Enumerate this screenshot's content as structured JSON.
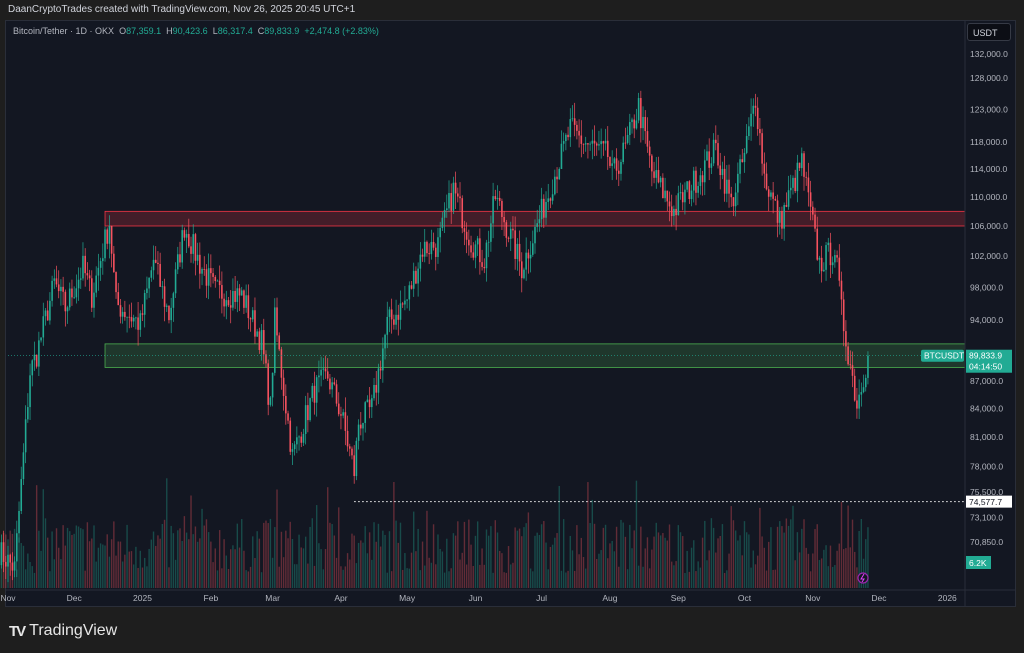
{
  "header": {
    "credit": "DaanCryptoTrades created with TradingView.com, Nov 26, 2025 20:45 UTC+1"
  },
  "legend": {
    "symbol": "Bitcoin/Tether · 1D · OKX",
    "o_label": "O",
    "o": "87,359.1",
    "h_label": "H",
    "h": "90,423.6",
    "l_label": "L",
    "l": "86,317.4",
    "c_label": "C",
    "c": "89,833.9",
    "change": "+2,474.8 (+2.83%)"
  },
  "price_axis": {
    "currency_button": "USDT"
  },
  "logo": {
    "text": "TradingView"
  },
  "colors": {
    "up": "#22ab94",
    "down": "#f7525f",
    "background": "#131722",
    "resistance_zone": "#f23645",
    "support_zone": "#4caf50",
    "marker": "#9c27b0"
  },
  "chart_data": {
    "type": "candlestick",
    "symbol": "BTCUSDT",
    "interval": "1D",
    "y_scale": "log",
    "ylim": [
      67000,
      134000
    ],
    "grid": false,
    "y_ticks": [
      132000,
      128000,
      123000,
      118000,
      114000,
      110000,
      106000,
      102000,
      98000,
      94000,
      87000,
      84000,
      81000,
      78000,
      75500,
      73100,
      70850
    ],
    "y_tick_labels": [
      "132,000.0",
      "128,000.0",
      "123,000.0",
      "118,000.0",
      "114,000.0",
      "110,000.0",
      "106,000.0",
      "102,000.0",
      "98,000.0",
      "94,000.0",
      "87,000.0",
      "84,000.0",
      "81,000.0",
      "78,000.0",
      "75,500.0",
      "73,100.0",
      "70,850.0"
    ],
    "x_ticks": [
      {
        "date": "2024-11-01",
        "label": "Nov"
      },
      {
        "date": "2024-12-01",
        "label": "Dec"
      },
      {
        "date": "2025-01-01",
        "label": "2025"
      },
      {
        "date": "2025-02-01",
        "label": "Feb"
      },
      {
        "date": "2025-03-01",
        "label": "Mar"
      },
      {
        "date": "2025-04-01",
        "label": "Apr"
      },
      {
        "date": "2025-05-01",
        "label": "May"
      },
      {
        "date": "2025-06-01",
        "label": "Jun"
      },
      {
        "date": "2025-07-01",
        "label": "Jul"
      },
      {
        "date": "2025-08-01",
        "label": "Aug"
      },
      {
        "date": "2025-09-01",
        "label": "Sep"
      },
      {
        "date": "2025-10-01",
        "label": "Oct"
      },
      {
        "date": "2025-11-01",
        "label": "Nov"
      },
      {
        "date": "2025-12-01",
        "label": "Dec"
      },
      {
        "date": "2026-01-01",
        "label": "2026"
      }
    ],
    "approx_close_path": [
      [
        "2024-10-28",
        70000
      ],
      [
        "2024-11-04",
        68500
      ],
      [
        "2024-11-11",
        88000
      ],
      [
        "2024-11-14",
        90000
      ],
      [
        "2024-11-22",
        98500
      ],
      [
        "2024-11-27",
        95500
      ],
      [
        "2024-12-05",
        100500
      ],
      [
        "2024-12-09",
        97000
      ],
      [
        "2024-12-17",
        106500
      ],
      [
        "2024-12-20",
        96000
      ],
      [
        "2024-12-31",
        93500
      ],
      [
        "2025-01-06",
        101500
      ],
      [
        "2025-01-13",
        94500
      ],
      [
        "2025-01-20",
        106000
      ],
      [
        "2025-01-27",
        101000
      ],
      [
        "2025-02-03",
        97500
      ],
      [
        "2025-02-15",
        97000
      ],
      [
        "2025-02-24",
        91500
      ],
      [
        "2025-02-28",
        84000
      ],
      [
        "2025-03-02",
        94000
      ],
      [
        "2025-03-10",
        79000
      ],
      [
        "2025-03-20",
        86000
      ],
      [
        "2025-03-26",
        87500
      ],
      [
        "2025-04-01",
        83500
      ],
      [
        "2025-04-07",
        77500
      ],
      [
        "2025-04-09",
        82500
      ],
      [
        "2025-04-15",
        84000
      ],
      [
        "2025-04-22",
        93500
      ],
      [
        "2025-05-01",
        96500
      ],
      [
        "2025-05-08",
        103000
      ],
      [
        "2025-05-15",
        103500
      ],
      [
        "2025-05-22",
        111000
      ],
      [
        "2025-05-30",
        104000
      ],
      [
        "2025-06-05",
        101500
      ],
      [
        "2025-06-10",
        110000
      ],
      [
        "2025-06-17",
        104500
      ],
      [
        "2025-06-22",
        100500
      ],
      [
        "2025-06-30",
        107000
      ],
      [
        "2025-07-10",
        116000
      ],
      [
        "2025-07-14",
        120000
      ],
      [
        "2025-07-20",
        118000
      ],
      [
        "2025-07-31",
        116000
      ],
      [
        "2025-08-02",
        113000
      ],
      [
        "2025-08-08",
        117000
      ],
      [
        "2025-08-14",
        123500
      ],
      [
        "2025-08-20",
        113500
      ],
      [
        "2025-08-30",
        108000
      ],
      [
        "2025-09-01",
        109000
      ],
      [
        "2025-09-10",
        113000
      ],
      [
        "2025-09-18",
        117000
      ],
      [
        "2025-09-25",
        109000
      ],
      [
        "2025-10-01",
        116000
      ],
      [
        "2025-10-06",
        125000
      ],
      [
        "2025-10-10",
        113000
      ],
      [
        "2025-10-17",
        106500
      ],
      [
        "2025-10-27",
        115000
      ],
      [
        "2025-11-04",
        101000
      ],
      [
        "2025-11-11",
        103000
      ],
      [
        "2025-11-14",
        95000
      ],
      [
        "2025-11-21",
        84500
      ],
      [
        "2025-11-26",
        89833.9
      ]
    ],
    "zones": [
      {
        "name": "resistance",
        "from": 106000,
        "to": 108000
      },
      {
        "name": "support",
        "from": 88500,
        "to": 91200
      }
    ],
    "horizontal_line": {
      "price": 74577.7,
      "label": "74,577.7",
      "start_date": "2025-04-07"
    },
    "last_price": {
      "symbol_label": "BTCUSDT",
      "value": 89833.9,
      "label": "89,833.9",
      "countdown": "04:14:50"
    },
    "last_volume_label": "6.2K"
  }
}
